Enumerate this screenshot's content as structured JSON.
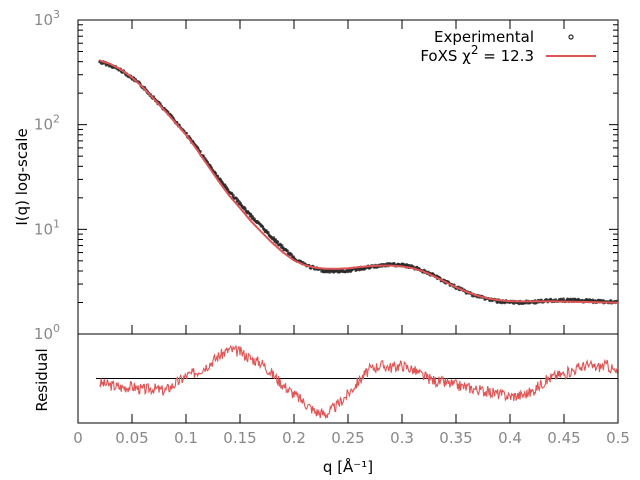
{
  "chart_data": [
    {
      "type": "scatter",
      "title": "",
      "xlabel": "q [Å⁻¹]",
      "ylabel": "I(q) log-scale",
      "yscale": "log",
      "xlim": [
        0,
        0.5
      ],
      "ylim": [
        1,
        1000
      ],
      "y_ticks": [
        {
          "value": 1,
          "base": "10",
          "exp": "0"
        },
        {
          "value": 10,
          "base": "10",
          "exp": "1"
        },
        {
          "value": 100,
          "base": "10",
          "exp": "2"
        },
        {
          "value": 1000,
          "base": "10",
          "exp": "3"
        }
      ],
      "legend": {
        "placement": "top-right",
        "entries": [
          {
            "label": "Experimental",
            "marker": "point",
            "color": "#2a2a2a"
          },
          {
            "label": "FoXS χ² = 12.3",
            "label_main": "FoXS χ",
            "label_sup": "2",
            "label_tail": " = 12.3",
            "marker": "line",
            "color": "#e05555"
          }
        ]
      },
      "series": [
        {
          "name": "Experimental",
          "color": "#2a2a2a",
          "x": [
            0.02,
            0.03,
            0.04,
            0.05,
            0.06,
            0.07,
            0.08,
            0.09,
            0.1,
            0.11,
            0.12,
            0.13,
            0.14,
            0.15,
            0.16,
            0.17,
            0.18,
            0.19,
            0.2,
            0.21,
            0.22,
            0.23,
            0.24,
            0.25,
            0.26,
            0.27,
            0.28,
            0.29,
            0.3,
            0.31,
            0.32,
            0.33,
            0.34,
            0.35,
            0.36,
            0.37,
            0.38,
            0.39,
            0.4,
            0.41,
            0.42,
            0.43,
            0.44,
            0.45,
            0.46,
            0.47,
            0.48,
            0.49,
            0.5
          ],
          "y": [
            400,
            370,
            330,
            280,
            230,
            180,
            140,
            108,
            82,
            60,
            43,
            31,
            23,
            17.5,
            13.5,
            10.6,
            8.3,
            6.6,
            5.3,
            4.6,
            4.2,
            4.0,
            4.0,
            4.05,
            4.2,
            4.35,
            4.5,
            4.6,
            4.55,
            4.35,
            4.0,
            3.6,
            3.15,
            2.8,
            2.5,
            2.3,
            2.15,
            2.05,
            2.0,
            2.0,
            2.02,
            2.05,
            2.1,
            2.1,
            2.1,
            2.07,
            2.05,
            2.03,
            2.02
          ]
        },
        {
          "name": "FoXS χ² = 12.3",
          "color": "#e05555",
          "x": [
            0.02,
            0.03,
            0.04,
            0.05,
            0.06,
            0.07,
            0.08,
            0.09,
            0.1,
            0.11,
            0.12,
            0.13,
            0.14,
            0.15,
            0.16,
            0.17,
            0.18,
            0.19,
            0.2,
            0.21,
            0.22,
            0.23,
            0.24,
            0.25,
            0.26,
            0.27,
            0.28,
            0.29,
            0.3,
            0.31,
            0.32,
            0.33,
            0.34,
            0.35,
            0.36,
            0.37,
            0.38,
            0.39,
            0.4,
            0.41,
            0.42,
            0.43,
            0.44,
            0.45,
            0.46,
            0.47,
            0.48,
            0.49,
            0.5
          ],
          "y": [
            410,
            380,
            335,
            282,
            228,
            177,
            137,
            105,
            80,
            58,
            41,
            29,
            21,
            16,
            12,
            9.4,
            7.4,
            6.0,
            5.05,
            4.55,
            4.3,
            4.2,
            4.2,
            4.25,
            4.35,
            4.45,
            4.5,
            4.5,
            4.42,
            4.25,
            3.95,
            3.55,
            3.15,
            2.8,
            2.52,
            2.32,
            2.18,
            2.1,
            2.06,
            2.05,
            2.05,
            2.05,
            2.05,
            2.04,
            2.03,
            2.02,
            2.01,
            2.0,
            1.99
          ]
        }
      ]
    },
    {
      "type": "line",
      "title": "",
      "xlabel": "q [Å⁻¹]",
      "ylabel": "Residual",
      "xlim": [
        0,
        0.5
      ],
      "ylim": [
        -1,
        1
      ],
      "x_ticks": [
        0,
        0.05,
        0.1,
        0.15,
        0.2,
        0.25,
        0.3,
        0.35,
        0.4,
        0.45,
        0.5
      ],
      "zero_line": 0,
      "series": [
        {
          "name": "Residual",
          "color": "#e05555",
          "x": [
            0.02,
            0.03,
            0.04,
            0.05,
            0.06,
            0.07,
            0.08,
            0.09,
            0.1,
            0.11,
            0.12,
            0.13,
            0.14,
            0.15,
            0.16,
            0.17,
            0.18,
            0.19,
            0.2,
            0.21,
            0.22,
            0.23,
            0.24,
            0.25,
            0.26,
            0.27,
            0.28,
            0.29,
            0.3,
            0.31,
            0.32,
            0.33,
            0.34,
            0.35,
            0.36,
            0.37,
            0.38,
            0.39,
            0.4,
            0.41,
            0.42,
            0.43,
            0.44,
            0.45,
            0.46,
            0.47,
            0.48,
            0.49,
            0.5
          ],
          "y": [
            -0.1,
            -0.15,
            -0.2,
            -0.18,
            -0.25,
            -0.22,
            -0.28,
            -0.12,
            0.05,
            0.15,
            0.3,
            0.5,
            0.65,
            0.6,
            0.45,
            0.35,
            0.1,
            -0.15,
            -0.35,
            -0.55,
            -0.75,
            -0.8,
            -0.6,
            -0.35,
            -0.05,
            0.2,
            0.3,
            0.25,
            0.3,
            0.2,
            0.05,
            -0.05,
            -0.1,
            -0.15,
            -0.2,
            -0.25,
            -0.3,
            -0.35,
            -0.4,
            -0.38,
            -0.3,
            -0.1,
            0.05,
            0.1,
            0.2,
            0.3,
            0.25,
            0.3,
            0.1
          ]
        }
      ]
    }
  ]
}
